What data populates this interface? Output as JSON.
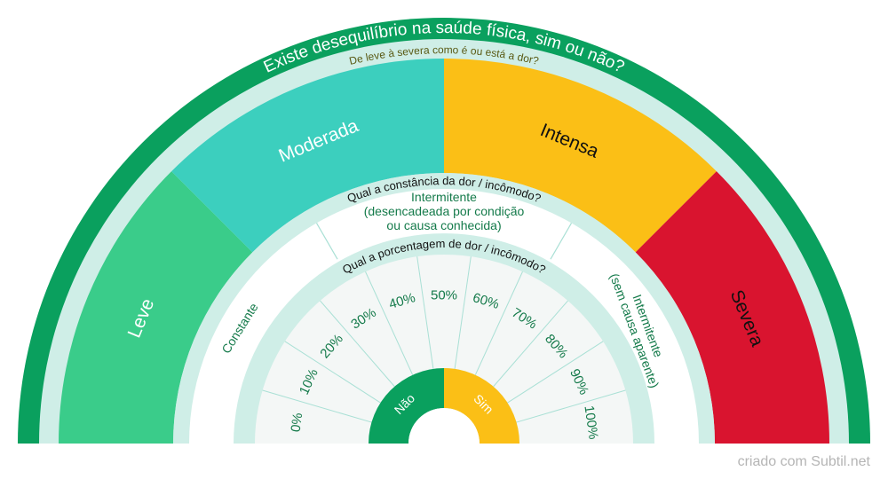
{
  "title": "Existe desequilíbrio na saúde física, sim ou não?",
  "severity_question": "De leve à severa como é ou está a dor?",
  "severity": [
    {
      "label": "Leve",
      "color": "#3acc8a",
      "text_color": "#ffffff"
    },
    {
      "label": "Moderada",
      "color": "#3ccfbe",
      "text_color": "#ffffff"
    },
    {
      "label": "Intensa",
      "color": "#fbbf16",
      "text_color": "#111111"
    },
    {
      "label": "Severa",
      "color": "#d9142f",
      "text_color": "#111111"
    }
  ],
  "constancy_question": "Qual a constância da dor / incômodo?",
  "constancy": [
    {
      "lines": [
        "Constante"
      ]
    },
    {
      "lines": [
        "Intermitente",
        "(desencadeada por condição",
        "ou causa conhecida)"
      ]
    },
    {
      "lines": [
        "Intermitente",
        "(sem causa aparente)"
      ]
    }
  ],
  "percentage_question": "Qual a porcentagem de dor / incômodo?",
  "percentages": [
    "0%",
    "10%",
    "20%",
    "30%",
    "40%",
    "50%",
    "60%",
    "70%",
    "80%",
    "90%",
    "100%"
  ],
  "answers": [
    {
      "label": "Não",
      "color": "#0aa05e"
    },
    {
      "label": "Sim",
      "color": "#fbbf16"
    }
  ],
  "colors": {
    "outer_ring": "#0aa05e",
    "ring_pale": "#cfeee7",
    "text_green": "#147a4a",
    "pct_fill": "#f4f7f6",
    "divider": "#a9e0d5"
  },
  "credit": "criado com Subtil.net"
}
